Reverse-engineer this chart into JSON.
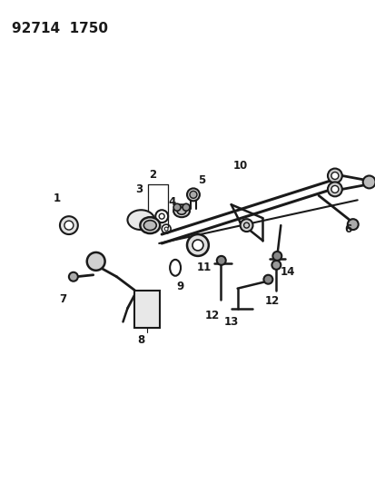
{
  "title": "92714  1750",
  "bg_color": "#ffffff",
  "line_color": "#1a1a1a",
  "title_fontsize": 11,
  "label_fontsize": 8.5,
  "fig_width": 4.14,
  "fig_height": 5.33,
  "dpi": 100
}
